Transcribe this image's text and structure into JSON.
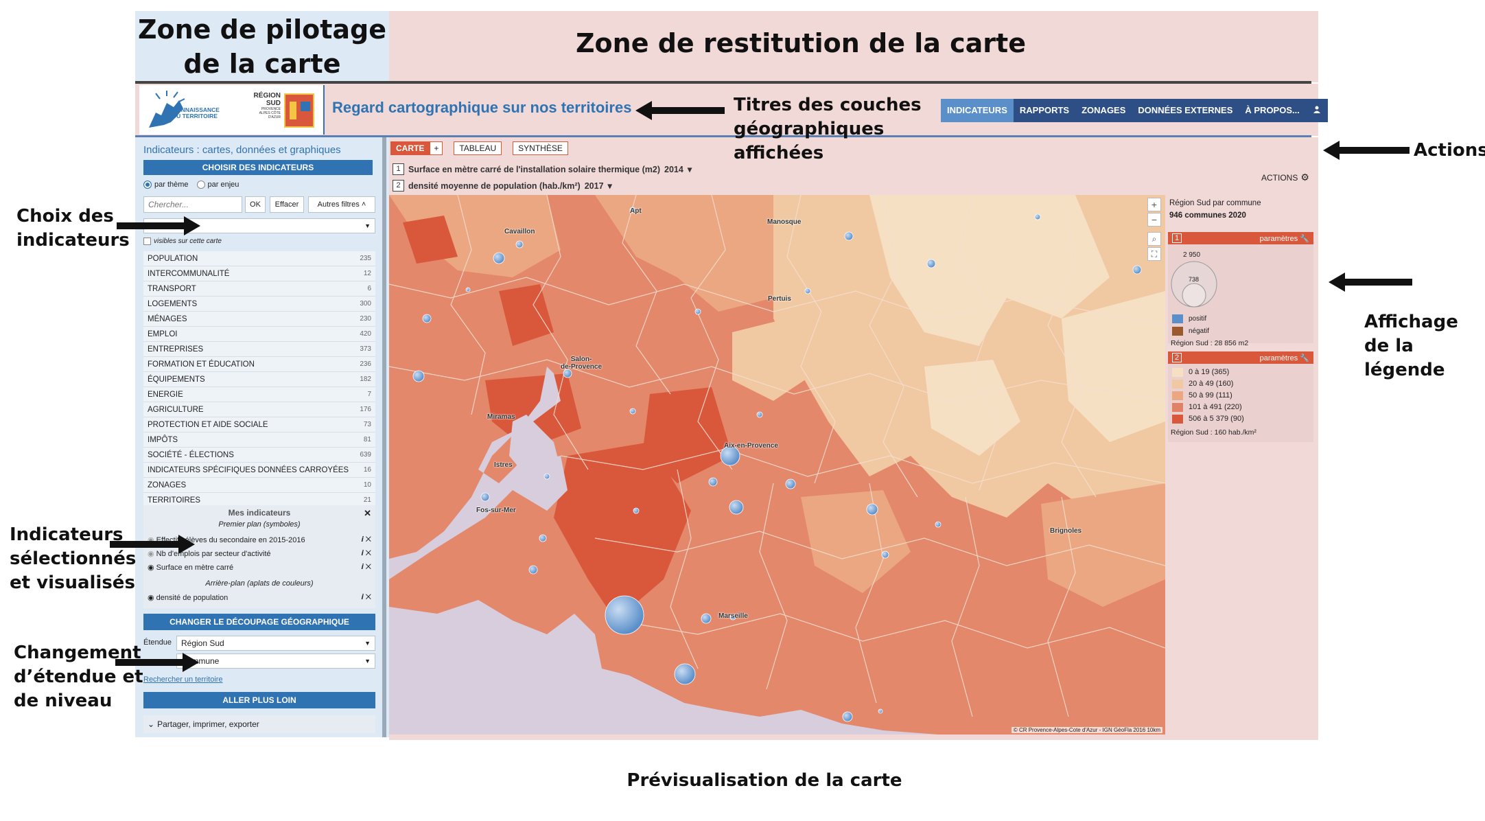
{
  "annotations": {
    "zone_left_title": "Zone de pilotage\nde la carte",
    "zone_right_title": "Zone de restitution de la carte",
    "layer_titles": "Titres des couches\ngéographiques\naffichées",
    "actions": "Actions",
    "choix_indicateurs": "Choix des\nindicateurs",
    "indicateurs_selectionnes": "Indicateurs\nsélectionnés\net visualisés",
    "changement": "Changement\nd’étendue et\nde niveau",
    "affichage_legende": "Affichage\nde la\nlégende",
    "caption": "Prévisualisation de la carte"
  },
  "header": {
    "logo_text_1": "CONNAISSANCE",
    "logo_text_2": "DU TERRITOIRE",
    "region_logo_1": "RÉGION",
    "region_logo_2": "SUD",
    "region_logo_3": "PROVENCE ALPES CÔTE D'AZUR",
    "site_title": "Regard cartographique sur nos territoires",
    "nav": [
      "INDICATEURS",
      "RAPPORTS",
      "ZONAGES",
      "DONNÉES EXTERNES",
      "À PROPOS..."
    ],
    "user_icon": "user-icon"
  },
  "left_panel": {
    "heading": "Indicateurs : cartes, données et graphiques",
    "choose_button": "CHOISIR DES INDICATEURS",
    "radio_theme": "par thème",
    "radio_enjeu": "par enjeu",
    "search_placeholder": "Chercher...",
    "ok": "OK",
    "clear": "Effacer",
    "other_filters": "Autres filtres",
    "visible_checkbox": "visibles sur cette carte",
    "categories": [
      {
        "label": "POPULATION",
        "count": "235"
      },
      {
        "label": "INTERCOMMUNALITÉ",
        "count": "12"
      },
      {
        "label": "TRANSPORT",
        "count": "6"
      },
      {
        "label": "LOGEMENTS",
        "count": "300"
      },
      {
        "label": "MÉNAGES",
        "count": "230"
      },
      {
        "label": "EMPLOI",
        "count": "420"
      },
      {
        "label": "ENTREPRISES",
        "count": "373"
      },
      {
        "label": "FORMATION ET ÉDUCATION",
        "count": "236"
      },
      {
        "label": "ÉQUIPEMENTS",
        "count": "182"
      },
      {
        "label": "ENERGIE",
        "count": "7"
      },
      {
        "label": "AGRICULTURE",
        "count": "176"
      },
      {
        "label": "PROTECTION ET AIDE SOCIALE",
        "count": "73"
      },
      {
        "label": "IMPÔTS",
        "count": "81"
      },
      {
        "label": "SOCIÉTÉ - ÉLECTIONS",
        "count": "639"
      },
      {
        "label": "INDICATEURS SPÉCIFIQUES DONNÉES CARROYÉES",
        "count": "16"
      },
      {
        "label": "ZONAGES",
        "count": "10"
      },
      {
        "label": "TERRITOIRES",
        "count": "21"
      }
    ],
    "my_indicators": {
      "title": "Mes indicateurs",
      "foreground": "Premier plan (symboles)",
      "background": "Arrière-plan (aplats de couleurs)",
      "items_fg": [
        "Effectifs élèves du secondaire en 2015-2016",
        "Nb d'emplois par secteur d'activité",
        "Surface en mètre carré"
      ],
      "items_bg": [
        "densité de population"
      ]
    },
    "change_geo_button": "CHANGER LE DÉCOUPAGE GÉOGRAPHIQUE",
    "extent_label": "Étendue",
    "extent_value": "Région Sud",
    "level_value": "Commune",
    "search_territory": "Rechercher un territoire",
    "go_further": "ALLER PLUS LOIN",
    "share": "Partager, imprimer, exporter"
  },
  "map_view": {
    "tabs": [
      "CARTE",
      "+",
      "TABLEAU",
      "SYNTHÈSE"
    ],
    "layer1": {
      "num": "1",
      "label": "Surface en mètre carré de l'installation solaire thermique (m2)",
      "year": "2014"
    },
    "layer2": {
      "num": "2",
      "label": "densité moyenne de population (hab./km²)",
      "year": "2017"
    },
    "actions_label": "ACTIONS",
    "cities": [
      "Apt",
      "Cavaillon",
      "Manosque",
      "Pertuis",
      "Salon-\nde-Provence",
      "Miramas",
      "Istres",
      "Aix-en-Provence",
      "Fos-sur-Mer",
      "Brignoles",
      "Marseille"
    ],
    "attribution": "© CR Provence-Alpes-Cote d'Azur - IGN GéoFla 2016  10km"
  },
  "legend": {
    "region_title": "Région Sud par commune",
    "count_text": "946 communes 2020",
    "layer1_num": "1",
    "params": "paramètres",
    "bubble_max": "2 950",
    "bubble_mid": "738",
    "pos": "positif",
    "neg": "négatif",
    "region_value_1": "Région Sud : 28 856 m2",
    "layer2_num": "2",
    "classes": [
      {
        "label": "0 à 19 (365)",
        "color": "#f5e0c3"
      },
      {
        "label": "20 à 49 (160)",
        "color": "#f0c9a3"
      },
      {
        "label": "50 à 99 (111)",
        "color": "#eba781"
      },
      {
        "label": "101 à 491 (220)",
        "color": "#e18166"
      },
      {
        "label": "506 à 5 379 (90)",
        "color": "#d9583c"
      }
    ],
    "region_value_2": "Région Sud : 160 hab./km²",
    "colors": {
      "pos": "#5b8fc9",
      "neg": "#9b5a2e"
    }
  }
}
